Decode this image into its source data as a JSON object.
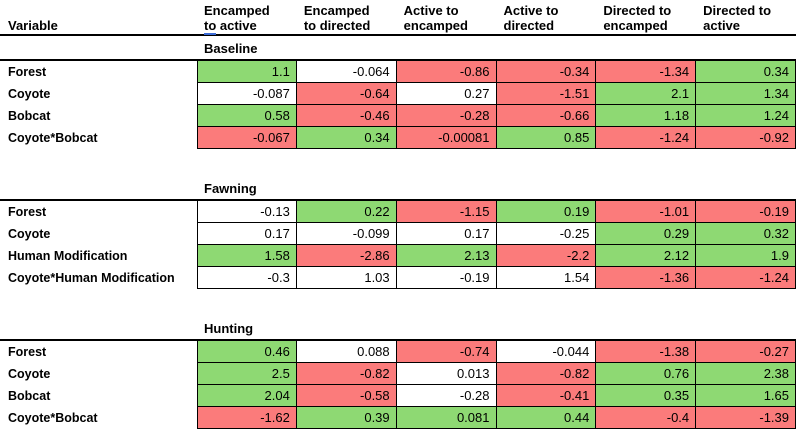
{
  "chart_data": {
    "type": "table",
    "variable_column_header": "Variable",
    "columns": [
      {
        "label": "Encamped to active",
        "lines": [
          "Encamped",
          "to active"
        ],
        "grammar_underline_word": "to"
      },
      {
        "label": "Encamped to directed",
        "lines": [
          "Encamped",
          "to directed"
        ]
      },
      {
        "label": "Active to encamped",
        "lines": [
          "Active to",
          "encamped"
        ]
      },
      {
        "label": "Active to directed",
        "lines": [
          "Active to",
          "directed"
        ]
      },
      {
        "label": "Directed to encamped",
        "lines": [
          "Directed to",
          "encamped"
        ]
      },
      {
        "label": "Directed to active",
        "lines": [
          "Directed to",
          "active"
        ]
      }
    ],
    "cell_color_legend": {
      "green": "#8ED973",
      "red": "#FB7B7B",
      "white": "#FFFFFF"
    },
    "sections": [
      {
        "name": "Baseline",
        "rows": [
          {
            "variable": "Forest",
            "values": [
              "1.1",
              "-0.064",
              "-0.86",
              "-0.34",
              "-1.34",
              "0.34"
            ],
            "colors": [
              "green",
              "white",
              "red",
              "red",
              "red",
              "green"
            ]
          },
          {
            "variable": "Coyote",
            "values": [
              "-0.087",
              "-0.64",
              "0.27",
              "-1.51",
              "2.1",
              "1.34"
            ],
            "colors": [
              "white",
              "red",
              "white",
              "red",
              "green",
              "green"
            ]
          },
          {
            "variable": "Bobcat",
            "values": [
              "0.58",
              "-0.46",
              "-0.28",
              "-0.66",
              "1.18",
              "1.24"
            ],
            "colors": [
              "green",
              "red",
              "red",
              "red",
              "green",
              "green"
            ]
          },
          {
            "variable": "Coyote*Bobcat",
            "values": [
              "-0.067",
              "0.34",
              "-0.00081",
              "0.85",
              "-1.24",
              "-0.92"
            ],
            "colors": [
              "red",
              "green",
              "red",
              "green",
              "red",
              "red"
            ]
          }
        ]
      },
      {
        "name": "Fawning",
        "rows": [
          {
            "variable": "Forest",
            "values": [
              "-0.13",
              "0.22",
              "-1.15",
              "0.19",
              "-1.01",
              "-0.19"
            ],
            "colors": [
              "white",
              "green",
              "red",
              "green",
              "red",
              "red"
            ]
          },
          {
            "variable": "Coyote",
            "values": [
              "0.17",
              "-0.099",
              "0.17",
              "-0.25",
              "0.29",
              "0.32"
            ],
            "colors": [
              "white",
              "white",
              "white",
              "white",
              "green",
              "green"
            ]
          },
          {
            "variable": "Human Modification",
            "values": [
              "1.58",
              "-2.86",
              "2.13",
              "-2.2",
              "2.12",
              "1.9"
            ],
            "colors": [
              "green",
              "red",
              "green",
              "red",
              "green",
              "green"
            ]
          },
          {
            "variable": "Coyote*Human Modification",
            "values": [
              "-0.3",
              "1.03",
              "-0.19",
              "1.54",
              "-1.36",
              "-1.24"
            ],
            "colors": [
              "white",
              "white",
              "white",
              "white",
              "red",
              "red"
            ]
          }
        ]
      },
      {
        "name": "Hunting",
        "rows": [
          {
            "variable": "Forest",
            "values": [
              "0.46",
              "0.088",
              "-0.74",
              "-0.044",
              "-1.38",
              "-0.27"
            ],
            "colors": [
              "green",
              "white",
              "red",
              "white",
              "red",
              "red"
            ]
          },
          {
            "variable": "Coyote",
            "values": [
              "2.5",
              "-0.82",
              "0.013",
              "-0.82",
              "0.76",
              "2.38"
            ],
            "colors": [
              "green",
              "red",
              "white",
              "red",
              "green",
              "green"
            ]
          },
          {
            "variable": "Bobcat",
            "values": [
              "2.04",
              "-0.58",
              "-0.28",
              "-0.41",
              "0.35",
              "1.65"
            ],
            "colors": [
              "green",
              "red",
              "white",
              "red",
              "green",
              "green"
            ]
          },
          {
            "variable": "Coyote*Bobcat",
            "values": [
              "-1.62",
              "0.39",
              "0.081",
              "0.44",
              "-0.4",
              "-1.39"
            ],
            "colors": [
              "red",
              "green",
              "green",
              "green",
              "red",
              "red"
            ]
          }
        ]
      }
    ]
  }
}
